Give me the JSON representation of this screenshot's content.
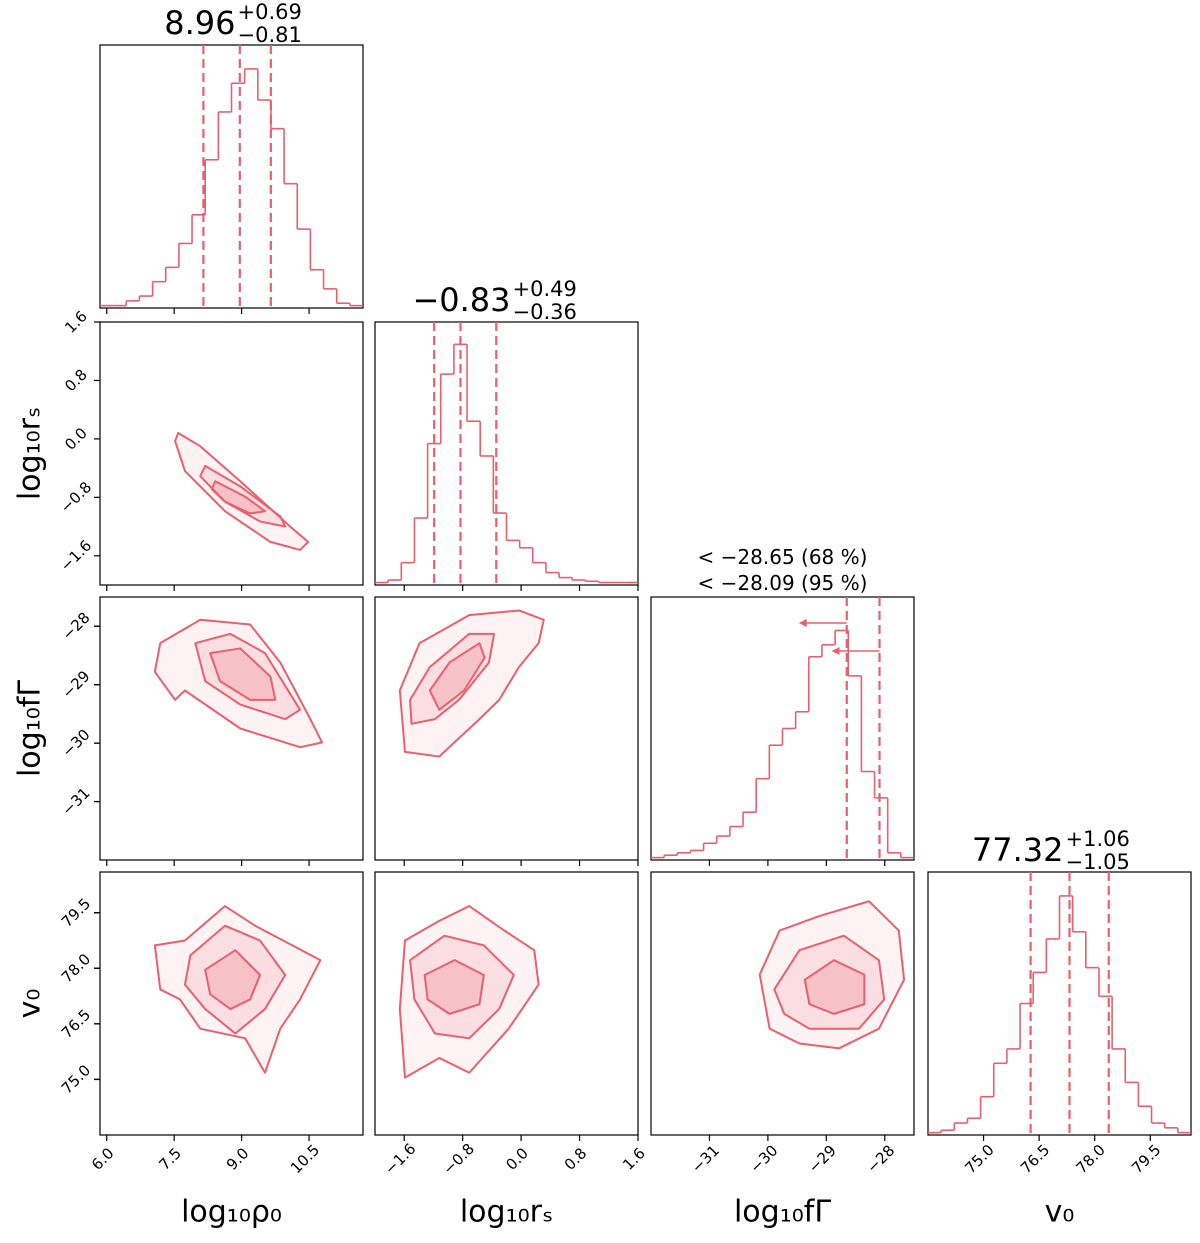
{
  "chart_data": {
    "type": "corner",
    "color": "#e8606e",
    "parameters": [
      {
        "label": "log₁₀ρ₀",
        "lim": [
          5.85,
          11.7
        ],
        "ticks": [
          {
            "value": 6,
            "label": "6.0"
          },
          7.5,
          {
            "value": 9,
            "label": "9.0"
          },
          10.5
        ]
      },
      {
        "label": "log₁₀rₛ",
        "lim": [
          -2.0,
          1.6
        ],
        "ticks": [
          {
            "value": -1.6,
            "label": "−1.6"
          },
          {
            "value": -0.8,
            "label": "−0.8"
          },
          {
            "value": 0,
            "label": "0.0"
          },
          0.8,
          1.6
        ]
      },
      {
        "label": "log₁₀fΓ",
        "lim": [
          -32.0,
          -27.5
        ],
        "ticks": [
          {
            "value": -31,
            "label": "−31"
          },
          {
            "value": -30,
            "label": "−30"
          },
          {
            "value": -29,
            "label": "−29"
          },
          {
            "value": -28,
            "label": "−28"
          }
        ]
      },
      {
        "label": "v₀",
        "lim": [
          73.5,
          80.6
        ],
        "ticks": [
          {
            "value": 75,
            "label": "75.0"
          },
          76.5,
          {
            "value": 78,
            "label": "78.0"
          },
          79.5
        ]
      }
    ],
    "histograms": [
      {
        "parameter": 0,
        "ylim": [
          0,
          110
        ],
        "bins": [
          5.85,
          6.1425,
          6.435,
          6.7275,
          7.02,
          7.3125,
          7.605,
          7.8975,
          8.19,
          8.4825,
          8.775,
          9.0675,
          9.36,
          9.6525,
          9.945,
          10.2375,
          10.53,
          10.8225,
          11.115,
          11.4075,
          11.7
        ],
        "counts": [
          1,
          1,
          3,
          5,
          11,
          17,
          27,
          39,
          62,
          82,
          94,
          100,
          87,
          75,
          52,
          33,
          16,
          8,
          2,
          1
        ],
        "quantiles": [
          8.15,
          8.96,
          9.65
        ],
        "title": {
          "value": "8.96",
          "upper": "+0.69",
          "lower": "−0.81"
        }
      },
      {
        "parameter": 1,
        "ylim": [
          0,
          106
        ],
        "bins": [
          -2.0,
          -1.82,
          -1.64,
          -1.46,
          -1.28,
          -1.1,
          -0.92,
          -0.74,
          -0.56,
          -0.38,
          -0.2,
          -0.02,
          0.16,
          0.34,
          0.52,
          0.7,
          0.88,
          1.06,
          1.24,
          1.42,
          1.6
        ],
        "counts": [
          1,
          2,
          9,
          27,
          57,
          85,
          97,
          66,
          52,
          29,
          18,
          15,
          9,
          5,
          3,
          2,
          1.5,
          1,
          1,
          1
        ],
        "quantiles": [
          -1.19,
          -0.83,
          -0.34
        ],
        "title": {
          "value": "−0.83",
          "upper": "+0.49",
          "lower": "−0.36"
        }
      },
      {
        "parameter": 2,
        "ylim": [
          0,
          110
        ],
        "bins": [
          -32,
          -31.775,
          -31.55,
          -31.325,
          -31.1,
          -30.875,
          -30.65,
          -30.425,
          -30.2,
          -29.975,
          -29.75,
          -29.525,
          -29.3,
          -29.075,
          -28.85,
          -28.625,
          -28.4,
          -28.175,
          -27.95,
          -27.725,
          -27.5
        ],
        "counts": [
          1,
          2,
          3,
          4,
          7,
          10,
          14,
          20,
          34,
          48,
          55,
          62,
          85,
          90,
          96,
          77,
          37,
          26,
          3,
          1
        ],
        "quantiles": [
          -28.65,
          -28.09
        ],
        "upper_limits": true,
        "title_lines": [
          "< −28.65 (68 %)",
          "< −28.09 (95 %)"
        ]
      },
      {
        "parameter": 3,
        "ylim": [
          0,
          110
        ],
        "bins": [
          73.5,
          73.855,
          74.21,
          74.565,
          74.92,
          75.275,
          75.63,
          75.985,
          76.34,
          76.695,
          77.05,
          77.405,
          77.76,
          78.115,
          78.47,
          78.825,
          79.18,
          79.535,
          79.89,
          80.245,
          80.6
        ],
        "counts": [
          1,
          2,
          5,
          7,
          16,
          30,
          36,
          55,
          68,
          82,
          100,
          85,
          70,
          58,
          36,
          22,
          12,
          5,
          3,
          1
        ],
        "quantiles": [
          76.27,
          77.32,
          78.38
        ],
        "title": {
          "value": "77.32",
          "upper": "+1.06",
          "lower": "−1.05"
        }
      }
    ],
    "panels": [
      {
        "x": 0,
        "y": 1,
        "contours": [
          {
            "x": [
              7.59,
              8.08,
              8.97,
              10.08,
              10.48,
              10.3,
              9.64,
              8.63,
              7.74,
              7.52
            ],
            "y": [
              0.08,
              -0.1,
              -0.58,
              -1.2,
              -1.41,
              -1.52,
              -1.41,
              -0.99,
              -0.44,
              -0.03
            ]
          },
          {
            "x": [
              8.19,
              8.97,
              9.86,
              9.97,
              9.41,
              8.63,
              8.08
            ],
            "y": [
              -0.37,
              -0.65,
              -1.06,
              -1.2,
              -1.13,
              -0.86,
              -0.51
            ]
          },
          {
            "x": [
              8.41,
              9.08,
              9.52,
              9.19,
              8.63,
              8.34
            ],
            "y": [
              -0.58,
              -0.79,
              -0.99,
              -1.02,
              -0.86,
              -0.69
            ]
          }
        ]
      },
      {
        "x": 0,
        "y": 2,
        "contours": [
          {
            "x": [
              7.19,
              8.08,
              9.19,
              9.86,
              10.53,
              10.79,
              10.3,
              8.97,
              7.74,
              7.52,
              7.07
            ],
            "y": [
              -28.29,
              -27.89,
              -27.97,
              -28.62,
              -29.59,
              -29.99,
              -30.07,
              -29.75,
              -29.1,
              -29.26,
              -28.78
            ]
          },
          {
            "x": [
              7.97,
              8.75,
              9.52,
              10.3,
              9.97,
              8.97,
              8.19
            ],
            "y": [
              -28.29,
              -28.13,
              -28.46,
              -29.43,
              -29.59,
              -29.34,
              -28.94
            ]
          },
          {
            "x": [
              8.3,
              8.97,
              9.64,
              9.75,
              9.19,
              8.52
            ],
            "y": [
              -28.46,
              -28.38,
              -28.86,
              -29.26,
              -29.26,
              -28.94
            ]
          }
        ]
      },
      {
        "x": 0,
        "y": 3,
        "contours": [
          {
            "x": [
              7.07,
              7.74,
              8.63,
              9.3,
              10.75,
              10.3,
              9.86,
              9.52,
              9.08,
              8.08,
              7.63,
              7.19
            ],
            "y": [
              78.62,
              78.75,
              79.68,
              79.15,
              78.22,
              77.16,
              76.37,
              75.18,
              76.11,
              76.37,
              77.16,
              77.43
            ]
          },
          {
            "x": [
              7.86,
              8.63,
              9.41,
              9.97,
              9.52,
              8.86,
              8.19,
              7.74
            ],
            "y": [
              78.35,
              79.15,
              78.75,
              77.82,
              76.9,
              76.24,
              76.9,
              77.56
            ]
          },
          {
            "x": [
              8.19,
              8.86,
              9.41,
              9.19,
              8.75,
              8.3
            ],
            "y": [
              77.96,
              78.49,
              77.82,
              77.16,
              76.9,
              77.3
            ]
          }
        ]
      },
      {
        "x": 1,
        "y": 2,
        "contours": [
          {
            "x": [
              -1.66,
              -1.39,
              -0.71,
              -0.03,
              0.31,
              0.24,
              -0.03,
              -0.3,
              -0.57,
              -1.12,
              -1.59
            ],
            "y": [
              -29.1,
              -28.29,
              -27.81,
              -27.73,
              -27.89,
              -28.29,
              -28.7,
              -29.26,
              -29.59,
              -30.23,
              -30.15
            ]
          },
          {
            "x": [
              -1.52,
              -1.25,
              -0.71,
              -0.37,
              -0.44,
              -0.85,
              -1.18,
              -1.5
            ],
            "y": [
              -29.26,
              -28.7,
              -28.13,
              -28.13,
              -28.62,
              -29.26,
              -29.59,
              -29.67
            ]
          },
          {
            "x": [
              -1.25,
              -0.98,
              -0.57,
              -0.5,
              -0.78,
              -1.12
            ],
            "y": [
              -29.1,
              -28.62,
              -28.29,
              -28.54,
              -29.1,
              -29.43
            ]
          }
        ]
      },
      {
        "x": 1,
        "y": 3,
        "contours": [
          {
            "x": [
              -1.59,
              -1.12,
              -0.71,
              -0.23,
              0.18,
              0.24,
              -0.17,
              -0.71,
              -1.12,
              -1.59,
              -1.66
            ],
            "y": [
              78.75,
              79.28,
              79.68,
              79.02,
              78.49,
              77.56,
              76.37,
              75.18,
              75.58,
              75.05,
              76.9
            ]
          },
          {
            "x": [
              -1.52,
              -1.05,
              -0.51,
              -0.1,
              -0.3,
              -0.71,
              -1.18,
              -1.46
            ],
            "y": [
              78.22,
              78.88,
              78.62,
              77.82,
              76.9,
              76.11,
              76.24,
              77.16
            ]
          },
          {
            "x": [
              -1.32,
              -0.91,
              -0.51,
              -0.57,
              -0.98,
              -1.28
            ],
            "y": [
              77.82,
              78.22,
              77.82,
              77.03,
              76.77,
              77.16
            ]
          }
        ]
      },
      {
        "x": 2,
        "y": 3,
        "contours": [
          {
            "x": [
              -30.14,
              -29.8,
              -29.12,
              -28.27,
              -27.76,
              -27.67,
              -28.1,
              -28.78,
              -29.46,
              -29.97
            ],
            "y": [
              77.83,
              79.02,
              79.41,
              79.81,
              79.02,
              77.69,
              76.37,
              75.84,
              75.97,
              76.37
            ]
          },
          {
            "x": [
              -29.89,
              -29.46,
              -28.7,
              -28.1,
              -28.01,
              -28.44,
              -29.29,
              -29.72
            ],
            "y": [
              77.43,
              78.49,
              78.88,
              78.22,
              77.16,
              76.37,
              76.37,
              76.77
            ]
          },
          {
            "x": [
              -29.37,
              -28.87,
              -28.35,
              -28.35,
              -28.87,
              -29.29
            ],
            "y": [
              77.69,
              78.22,
              77.83,
              77.03,
              76.77,
              77.03
            ]
          }
        ]
      }
    ]
  }
}
